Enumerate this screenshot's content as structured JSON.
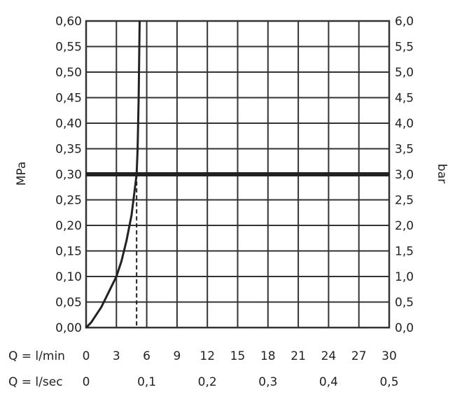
{
  "chart_data": {
    "type": "line",
    "y_left": {
      "label": "MPa",
      "range": [
        0,
        0.6
      ],
      "ticks": [
        "0,00",
        "0,05",
        "0,10",
        "0,15",
        "0,20",
        "0,25",
        "0,30",
        "0,35",
        "0,40",
        "0,45",
        "0,50",
        "0,55",
        "0,60"
      ]
    },
    "y_right": {
      "label": "bar",
      "range": [
        0,
        6
      ],
      "ticks": [
        "0,0",
        "0,5",
        "1,0",
        "1,5",
        "2,0",
        "2,5",
        "3,0",
        "3,5",
        "4,0",
        "4,5",
        "5,0",
        "5,5",
        "6,0"
      ]
    },
    "x_lmin": {
      "label": "Q = l/min",
      "range": [
        0,
        30
      ],
      "ticks": [
        {
          "value": 0,
          "text": "0"
        },
        {
          "value": 3,
          "text": "3"
        },
        {
          "value": 6,
          "text": "6"
        },
        {
          "value": 9,
          "text": "9"
        },
        {
          "value": 12,
          "text": "12"
        },
        {
          "value": 15,
          "text": "15"
        },
        {
          "value": 18,
          "text": "18"
        },
        {
          "value": 21,
          "text": "21"
        },
        {
          "value": 24,
          "text": "24"
        },
        {
          "value": 27,
          "text": "27"
        },
        {
          "value": 30,
          "text": "30"
        }
      ]
    },
    "x_lsec": {
      "label": "Q = l/sec",
      "ticks": [
        {
          "value": 0,
          "text": "0"
        },
        {
          "value": 6,
          "text": "0,1"
        },
        {
          "value": 12,
          "text": "0,2"
        },
        {
          "value": 18,
          "text": "0,3"
        },
        {
          "value": 24,
          "text": "0,4"
        },
        {
          "value": 30,
          "text": "0,5"
        }
      ]
    },
    "grid": true,
    "series": [
      {
        "values": [
          [
            0,
            0
          ],
          [
            0.5,
            0.01
          ],
          [
            1,
            0.025
          ],
          [
            1.5,
            0.04
          ],
          [
            2,
            0.06
          ],
          [
            2.5,
            0.08
          ],
          [
            3,
            0.1
          ],
          [
            3.5,
            0.13
          ],
          [
            4,
            0.17
          ],
          [
            4.5,
            0.22
          ],
          [
            5,
            0.3
          ],
          [
            5.1,
            0.35
          ],
          [
            5.2,
            0.45
          ],
          [
            5.3,
            0.6
          ]
        ]
      }
    ],
    "reference_line": {
      "y": 0.3
    },
    "vertical_marker": {
      "x": 5
    }
  }
}
